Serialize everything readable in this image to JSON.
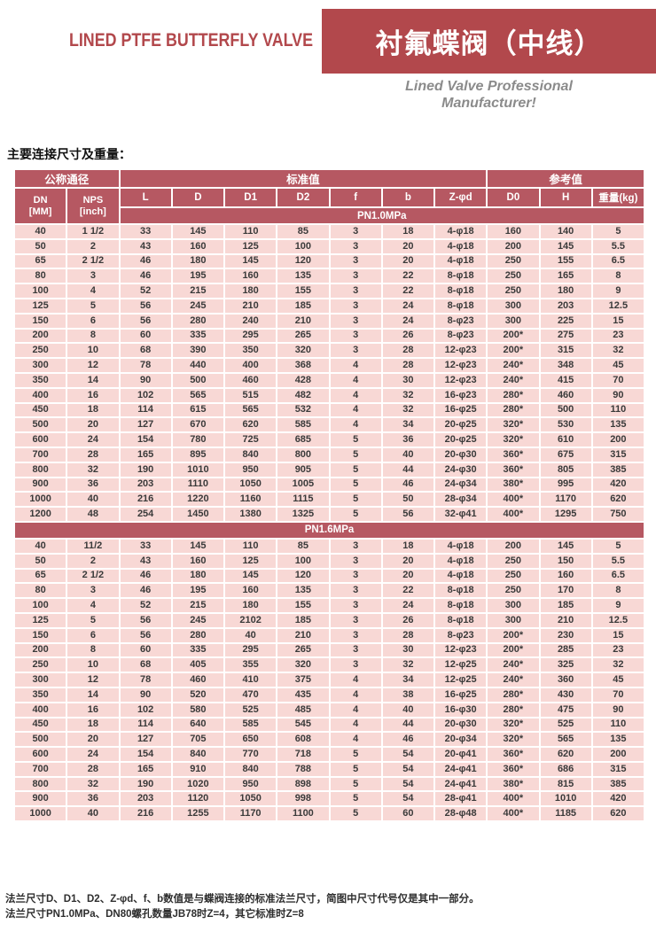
{
  "page": {
    "header": {
      "title_en": "LINED PTFE BUTTERFLY VALVE",
      "title_zh": "衬氟蝶阀（中线）",
      "tagline": [
        "Lined Valve Professional",
        "Manufacturer!"
      ]
    },
    "section_title": "主要连接尺寸及重量："
  },
  "colors": {
    "banner_red": "#b2484c",
    "table_header_rose": "#b65862",
    "row_pink": "#f8d8d5",
    "data_text": "#3a3a3a",
    "tagline_gray": "#8b8b8b"
  },
  "table": {
    "group_headers": [
      "公称通径",
      "标准值",
      "参考值"
    ],
    "col_dn": {
      "line1": "DN",
      "line2": "[MM]"
    },
    "col_nps": {
      "line1": "NPS",
      "line2": "[inch]"
    },
    "value_columns": [
      "L",
      "D",
      "D1",
      "D2",
      "f",
      "b",
      "Z-φd",
      "D0",
      "H",
      "重量(kg)"
    ],
    "sections": [
      {
        "label": "PN1.0MPa",
        "rows": [
          [
            "40",
            "1 1/2",
            "33",
            "145",
            "110",
            "85",
            "3",
            "18",
            "4-φ18",
            "160",
            "140",
            "5"
          ],
          [
            "50",
            "2",
            "43",
            "160",
            "125",
            "100",
            "3",
            "20",
            "4-φ18",
            "200",
            "145",
            "5.5"
          ],
          [
            "65",
            "2 1/2",
            "46",
            "180",
            "145",
            "120",
            "3",
            "20",
            "4-φ18",
            "250",
            "155",
            "6.5"
          ],
          [
            "80",
            "3",
            "46",
            "195",
            "160",
            "135",
            "3",
            "22",
            "8-φ18",
            "250",
            "165",
            "8"
          ],
          [
            "100",
            "4",
            "52",
            "215",
            "180",
            "155",
            "3",
            "22",
            "8-φ18",
            "250",
            "180",
            "9"
          ],
          [
            "125",
            "5",
            "56",
            "245",
            "210",
            "185",
            "3",
            "24",
            "8-φ18",
            "300",
            "203",
            "12.5"
          ],
          [
            "150",
            "6",
            "56",
            "280",
            "240",
            "210",
            "3",
            "24",
            "8-φ23",
            "300",
            "225",
            "15"
          ],
          [
            "200",
            "8",
            "60",
            "335",
            "295",
            "265",
            "3",
            "26",
            "8-φ23",
            "200*",
            "275",
            "23"
          ],
          [
            "250",
            "10",
            "68",
            "390",
            "350",
            "320",
            "3",
            "28",
            "12-φ23",
            "200*",
            "315",
            "32"
          ],
          [
            "300",
            "12",
            "78",
            "440",
            "400",
            "368",
            "4",
            "28",
            "12-φ23",
            "240*",
            "348",
            "45"
          ],
          [
            "350",
            "14",
            "90",
            "500",
            "460",
            "428",
            "4",
            "30",
            "12-φ23",
            "240*",
            "415",
            "70"
          ],
          [
            "400",
            "16",
            "102",
            "565",
            "515",
            "482",
            "4",
            "32",
            "16-φ23",
            "280*",
            "460",
            "90"
          ],
          [
            "450",
            "18",
            "114",
            "615",
            "565",
            "532",
            "4",
            "32",
            "16-φ25",
            "280*",
            "500",
            "110"
          ],
          [
            "500",
            "20",
            "127",
            "670",
            "620",
            "585",
            "4",
            "34",
            "20-φ25",
            "320*",
            "530",
            "135"
          ],
          [
            "600",
            "24",
            "154",
            "780",
            "725",
            "685",
            "5",
            "36",
            "20-φ25",
            "320*",
            "610",
            "200"
          ],
          [
            "700",
            "28",
            "165",
            "895",
            "840",
            "800",
            "5",
            "40",
            "20-φ30",
            "360*",
            "675",
            "315"
          ],
          [
            "800",
            "32",
            "190",
            "1010",
            "950",
            "905",
            "5",
            "44",
            "24-φ30",
            "360*",
            "805",
            "385"
          ],
          [
            "900",
            "36",
            "203",
            "1110",
            "1050",
            "1005",
            "5",
            "46",
            "24-φ34",
            "380*",
            "995",
            "420"
          ],
          [
            "1000",
            "40",
            "216",
            "1220",
            "1160",
            "1115",
            "5",
            "50",
            "28-φ34",
            "400*",
            "1170",
            "620"
          ],
          [
            "1200",
            "48",
            "254",
            "1450",
            "1380",
            "1325",
            "5",
            "56",
            "32-φ41",
            "400*",
            "1295",
            "750"
          ]
        ]
      },
      {
        "label": "PN1.6MPa",
        "rows": [
          [
            "40",
            "11/2",
            "33",
            "145",
            "110",
            "85",
            "3",
            "18",
            "4-φ18",
            "200",
            "145",
            "5"
          ],
          [
            "50",
            "2",
            "43",
            "160",
            "125",
            "100",
            "3",
            "20",
            "4-φ18",
            "250",
            "150",
            "5.5"
          ],
          [
            "65",
            "2 1/2",
            "46",
            "180",
            "145",
            "120",
            "3",
            "20",
            "4-φ18",
            "250",
            "160",
            "6.5"
          ],
          [
            "80",
            "3",
            "46",
            "195",
            "160",
            "135",
            "3",
            "22",
            "8-φ18",
            "250",
            "170",
            "8"
          ],
          [
            "100",
            "4",
            "52",
            "215",
            "180",
            "155",
            "3",
            "24",
            "8-φ18",
            "300",
            "185",
            "9"
          ],
          [
            "125",
            "5",
            "56",
            "245",
            "2102",
            "185",
            "3",
            "26",
            "8-φ18",
            "300",
            "210",
            "12.5"
          ],
          [
            "150",
            "6",
            "56",
            "280",
            "40",
            "210",
            "3",
            "28",
            "8-φ23",
            "200*",
            "230",
            "15"
          ],
          [
            "200",
            "8",
            "60",
            "335",
            "295",
            "265",
            "3",
            "30",
            "12-φ23",
            "200*",
            "285",
            "23"
          ],
          [
            "250",
            "10",
            "68",
            "405",
            "355",
            "320",
            "3",
            "32",
            "12-φ25",
            "240*",
            "325",
            "32"
          ],
          [
            "300",
            "12",
            "78",
            "460",
            "410",
            "375",
            "4",
            "34",
            "12-φ25",
            "240*",
            "360",
            "45"
          ],
          [
            "350",
            "14",
            "90",
            "520",
            "470",
            "435",
            "4",
            "38",
            "16-φ25",
            "280*",
            "430",
            "70"
          ],
          [
            "400",
            "16",
            "102",
            "580",
            "525",
            "485",
            "4",
            "40",
            "16-φ30",
            "280*",
            "475",
            "90"
          ],
          [
            "450",
            "18",
            "114",
            "640",
            "585",
            "545",
            "4",
            "44",
            "20-φ30",
            "320*",
            "525",
            "110"
          ],
          [
            "500",
            "20",
            "127",
            "705",
            "650",
            "608",
            "4",
            "46",
            "20-φ34",
            "320*",
            "565",
            "135"
          ],
          [
            "600",
            "24",
            "154",
            "840",
            "770",
            "718",
            "5",
            "54",
            "20-φ41",
            "360*",
            "620",
            "200"
          ],
          [
            "700",
            "28",
            "165",
            "910",
            "840",
            "788",
            "5",
            "54",
            "24-φ41",
            "360*",
            "686",
            "315"
          ],
          [
            "800",
            "32",
            "190",
            "1020",
            "950",
            "898",
            "5",
            "54",
            "24-φ41",
            "380*",
            "815",
            "385"
          ],
          [
            "900",
            "36",
            "203",
            "1120",
            "1050",
            "998",
            "5",
            "54",
            "28-φ41",
            "400*",
            "1010",
            "420"
          ],
          [
            "1000",
            "40",
            "216",
            "1255",
            "1170",
            "1100",
            "5",
            "60",
            "28-φ48",
            "400*",
            "1185",
            "620"
          ]
        ]
      }
    ]
  },
  "notes": [
    "法兰尺寸D、D1、D2、Z-φd、f、b数值是与蝶阀连接的标准法兰尺寸，简图中尺寸代号仅是其中一部分。",
    "法兰尺寸PN1.0MPa、DN80螺孔数量JB78时Z=4，其它标准时Z=8"
  ]
}
